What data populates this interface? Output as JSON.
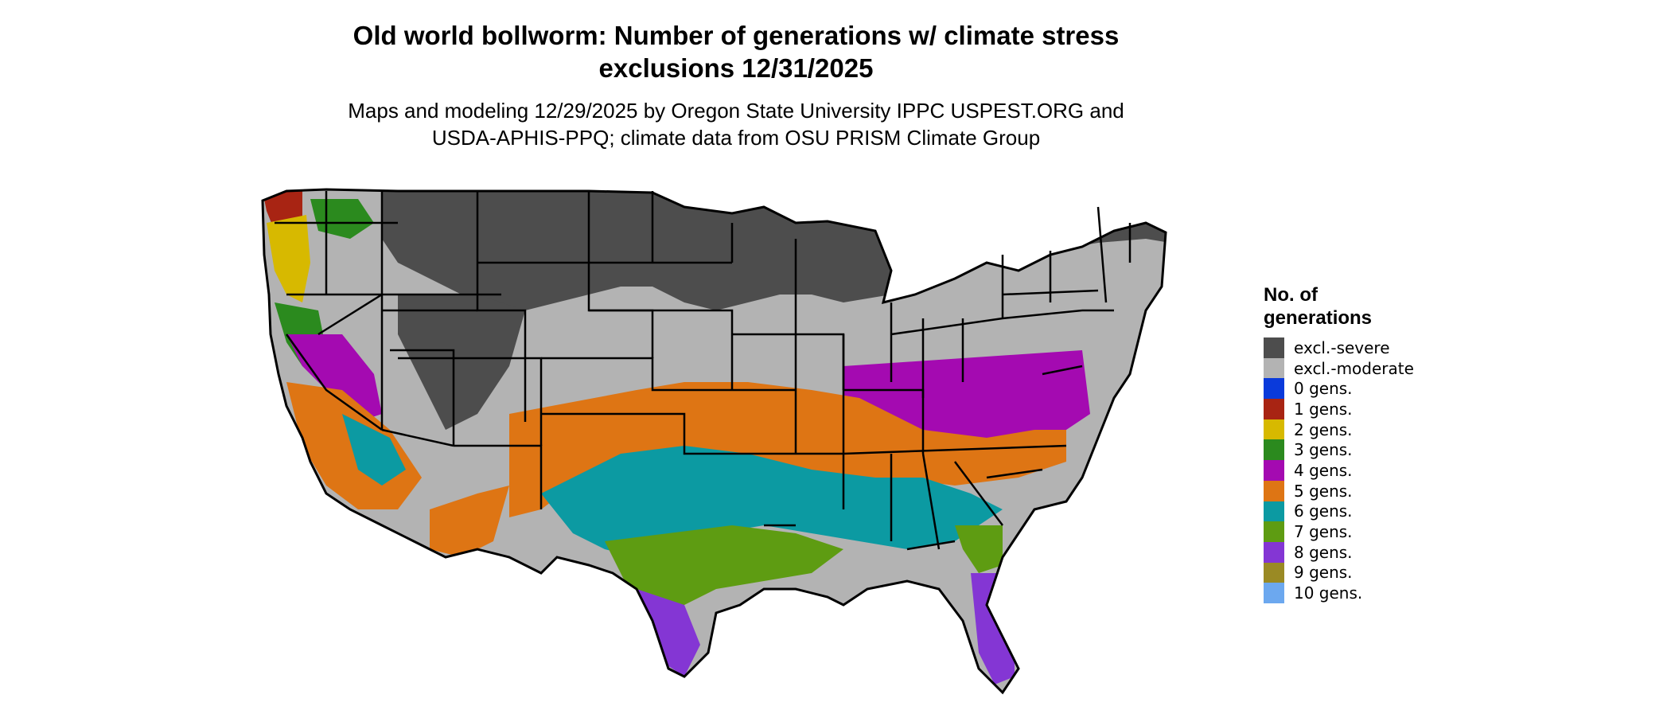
{
  "title_line1": "Old world bollworm: Number of generations w/ climate stress",
  "title_line2": "exclusions 12/31/2025",
  "subtitle_line1": "Maps and modeling 12/29/2025 by Oregon State University IPPC USPEST.ORG and",
  "subtitle_line2": "USDA-APHIS-PPQ; climate data from OSU PRISM Climate Group",
  "legend": {
    "title_line1": "No. of",
    "title_line2": "generations",
    "items": [
      {
        "label": "excl.-severe",
        "color": "#4d4d4d"
      },
      {
        "label": "excl.-moderate",
        "color": "#b3b3b3"
      },
      {
        "label": "0 gens.",
        "color": "#0a3adb"
      },
      {
        "label": "1 gens.",
        "color": "#a82413"
      },
      {
        "label": "2 gens.",
        "color": "#d7b900"
      },
      {
        "label": "3 gens.",
        "color": "#2b8a1e"
      },
      {
        "label": "4 gens.",
        "color": "#a40ab1"
      },
      {
        "label": "5 gens.",
        "color": "#de7514"
      },
      {
        "label": "6 gens.",
        "color": "#0c9aa2"
      },
      {
        "label": "7 gens.",
        "color": "#5e9c12"
      },
      {
        "label": "8 gens.",
        "color": "#8436d4"
      },
      {
        "label": "9 gens.",
        "color": "#9a8a24"
      },
      {
        "label": "10 gens.",
        "color": "#6ca8ef"
      }
    ]
  }
}
